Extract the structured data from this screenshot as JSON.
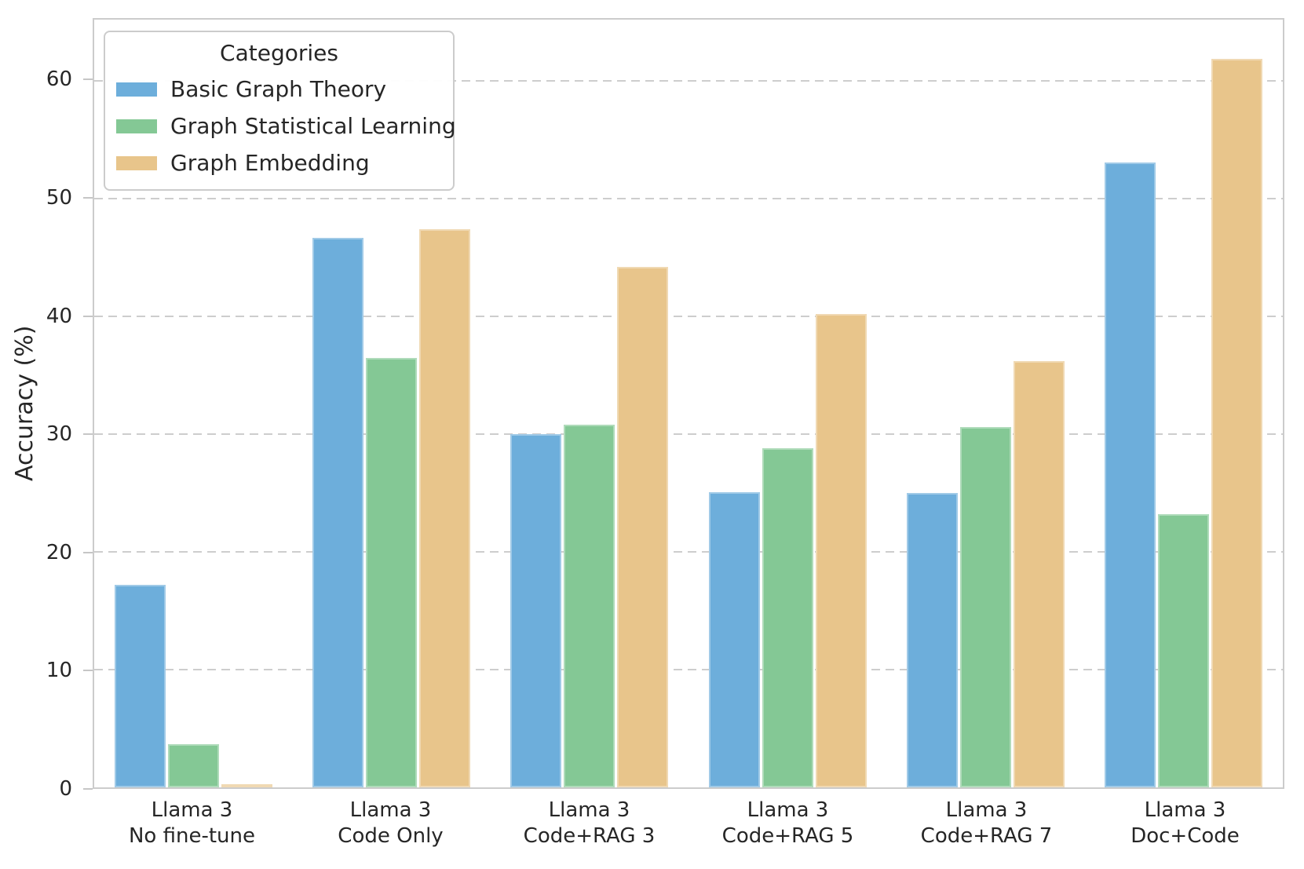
{
  "chart_data": {
    "type": "bar",
    "title": "",
    "xlabel": "",
    "ylabel": "Accuracy (%)",
    "ylim": [
      0,
      65.2
    ],
    "yticks": [
      0,
      10,
      20,
      30,
      40,
      50,
      60
    ],
    "grid": "horizontal-dashed",
    "legend_title": "Categories",
    "legend_position": "upper-left",
    "categories": [
      {
        "line1": "Llama 3",
        "line2": "No fine-tune"
      },
      {
        "line1": "Llama 3",
        "line2": "Code Only"
      },
      {
        "line1": "Llama 3",
        "line2": "Code+RAG 3"
      },
      {
        "line1": "Llama 3",
        "line2": "Code+RAG 5"
      },
      {
        "line1": "Llama 3",
        "line2": "Code+RAG 7"
      },
      {
        "line1": "Llama 3",
        "line2": "Doc+Code"
      }
    ],
    "series": [
      {
        "name": "Basic Graph Theory",
        "color": "#6DAEDB",
        "values": [
          17.2,
          46.7,
          30.0,
          25.1,
          25.0,
          53.1
        ]
      },
      {
        "name": "Graph Statistical Learning",
        "color": "#84C895",
        "values": [
          3.7,
          36.5,
          30.8,
          28.8,
          30.6,
          23.2
        ]
      },
      {
        "name": "Graph Embedding",
        "color": "#E8C58B",
        "values": [
          0.3,
          47.4,
          44.2,
          40.2,
          36.2,
          61.9
        ]
      }
    ],
    "colors": {
      "text": "#262626",
      "grid": "#cdcdcd",
      "spine": "#cccccc"
    }
  }
}
